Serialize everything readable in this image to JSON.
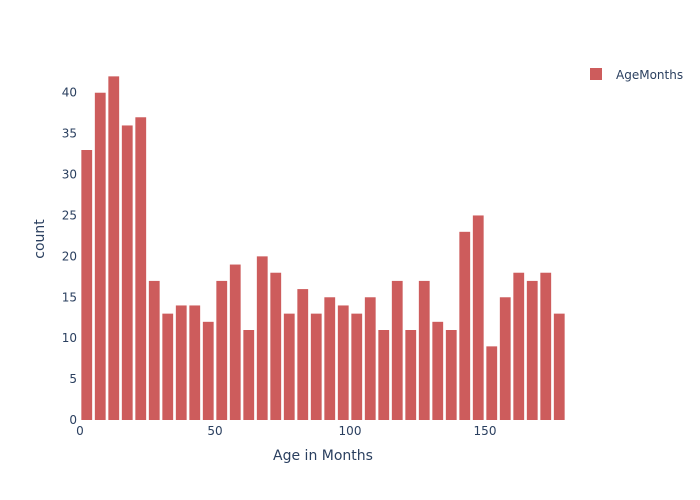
{
  "chart_data": {
    "type": "bar",
    "xlabel": "Age in Months",
    "ylabel": "count",
    "xlim": [
      0,
      180
    ],
    "ylim": [
      0,
      44
    ],
    "x_ticks": [
      0,
      50,
      100,
      150
    ],
    "y_ticks": [
      0,
      5,
      10,
      15,
      20,
      25,
      30,
      35,
      40
    ],
    "bin_width": 5,
    "bins_start": [
      0,
      5,
      10,
      15,
      20,
      25,
      30,
      35,
      40,
      45,
      50,
      55,
      60,
      65,
      70,
      75,
      80,
      85,
      90,
      95,
      100,
      105,
      110,
      115,
      120,
      125,
      130,
      135,
      140,
      145,
      150,
      155,
      160,
      165,
      170,
      175
    ],
    "series": [
      {
        "name": "AgeMonths",
        "color": "#cd5c5c",
        "values": [
          33,
          40,
          42,
          36,
          37,
          17,
          13,
          14,
          14,
          12,
          17,
          19,
          11,
          20,
          18,
          13,
          16,
          13,
          15,
          14,
          13,
          15,
          11,
          17,
          11,
          17,
          12,
          11,
          23,
          25,
          9,
          15,
          18,
          17,
          18,
          13
        ]
      }
    ],
    "legend_position": "top-right",
    "grid": false
  }
}
